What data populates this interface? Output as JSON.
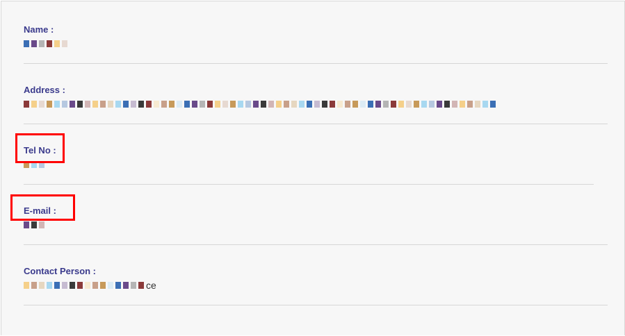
{
  "fields": [
    {
      "label": "Name :",
      "value_suffix": ""
    },
    {
      "label": "Address :",
      "value_suffix": ""
    },
    {
      "label": "Tel No :",
      "value_suffix": ""
    },
    {
      "label": "E-mail :",
      "value_suffix": ""
    },
    {
      "label": "Contact Person :",
      "value_suffix": "ce"
    }
  ],
  "highlighted_fields": [
    "Tel No :",
    "E-mail :"
  ],
  "colors": {
    "label": "#3a3a8c",
    "highlight": "#ff0000",
    "mosaic": [
      "#3b6fb5",
      "#8b3a3a",
      "#c79a5a",
      "#6a4a8a",
      "#f5d08a",
      "#a8d8f0",
      "#3a3a3a",
      "#c8a08a"
    ]
  }
}
